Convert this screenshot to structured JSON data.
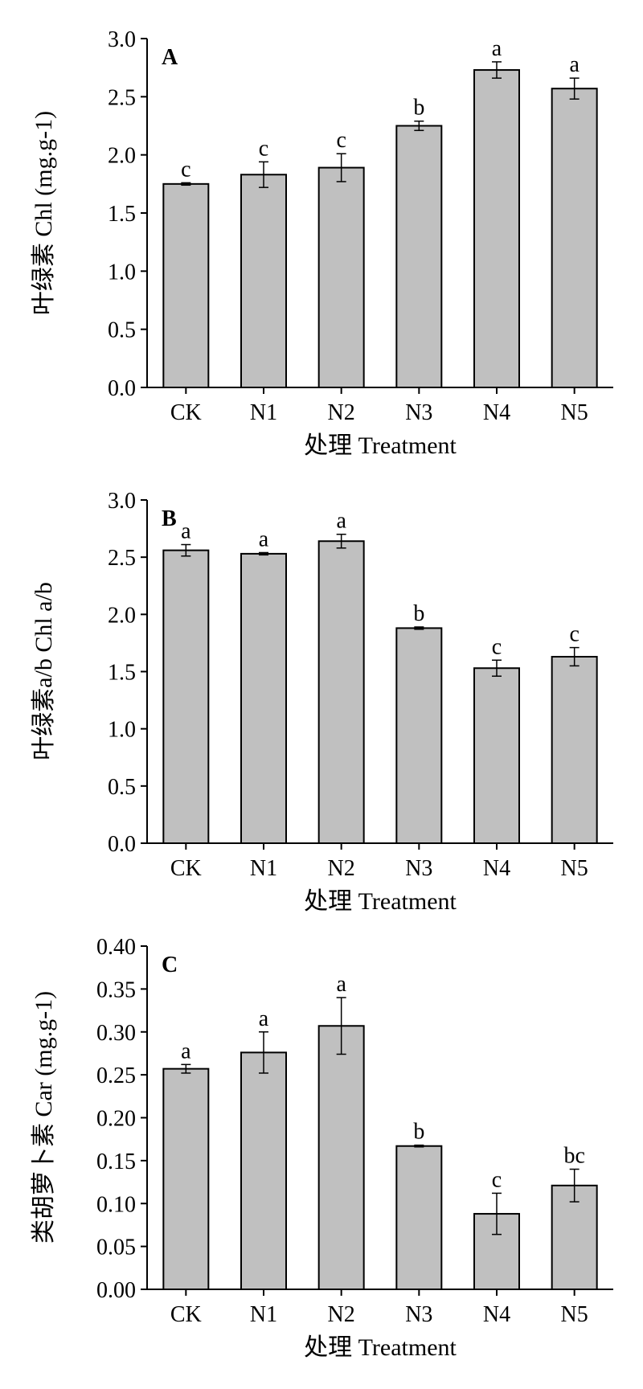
{
  "colors": {
    "bar_fill": "#c0c0c0",
    "stroke": "#000000"
  },
  "chart_data": [
    {
      "type": "bar",
      "panel_label": "A",
      "categories": [
        "CK",
        "N1",
        "N2",
        "N3",
        "N4",
        "N5"
      ],
      "values": [
        1.75,
        1.83,
        1.89,
        2.25,
        2.73,
        2.57
      ],
      "errors": [
        0.01,
        0.11,
        0.12,
        0.04,
        0.07,
        0.09
      ],
      "significance": [
        "c",
        "c",
        "c",
        "b",
        "a",
        "a"
      ],
      "ylim": [
        0,
        3.0
      ],
      "yticks": [
        "0.0",
        "0.5",
        "1.0",
        "1.5",
        "2.0",
        "2.5",
        "3.0"
      ],
      "ylabel": "叶绿素 Chl (mg.g-1)",
      "xlabel": "处理  Treatment",
      "grid": false
    },
    {
      "type": "bar",
      "panel_label": "B",
      "categories": [
        "CK",
        "N1",
        "N2",
        "N3",
        "N4",
        "N5"
      ],
      "values": [
        2.56,
        2.53,
        2.64,
        1.88,
        1.53,
        1.63
      ],
      "errors": [
        0.05,
        0.01,
        0.06,
        0.01,
        0.07,
        0.08
      ],
      "significance": [
        "a",
        "a",
        "a",
        "b",
        "c",
        "c"
      ],
      "ylim": [
        0,
        3.0
      ],
      "yticks": [
        "0.0",
        "0.5",
        "1.0",
        "1.5",
        "2.0",
        "2.5",
        "3.0"
      ],
      "ylabel": "叶绿素a/b Chl a/b",
      "xlabel": "处理  Treatment",
      "grid": false
    },
    {
      "type": "bar",
      "panel_label": "C",
      "categories": [
        "CK",
        "N1",
        "N2",
        "N3",
        "N4",
        "N5"
      ],
      "values": [
        0.257,
        0.276,
        0.307,
        0.167,
        0.088,
        0.121
      ],
      "errors": [
        0.005,
        0.024,
        0.033,
        0.001,
        0.024,
        0.019
      ],
      "significance": [
        "a",
        "a",
        "a",
        "b",
        "c",
        "bc"
      ],
      "ylim": [
        0,
        0.4
      ],
      "yticks": [
        "0.00",
        "0.05",
        "0.10",
        "0.15",
        "0.20",
        "0.25",
        "0.30",
        "0.35",
        "0.40"
      ],
      "ylabel": "类胡萝卜素  Car (mg.g-1)",
      "xlabel": "处理  Treatment",
      "grid": false
    }
  ]
}
